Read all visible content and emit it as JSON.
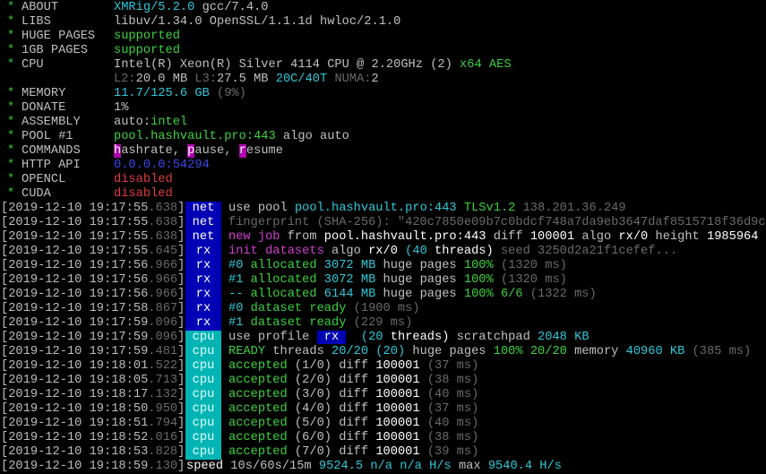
{
  "colors": {
    "green": "#3dd23d",
    "cyan": "#2ec8d8",
    "blue": "#3b48e8",
    "red": "#e03c3c",
    "dim": "#6a6a6a",
    "magenta": "#d040d0",
    "tag_net_rx_bg": "#0000b4",
    "tag_cpu_bg": "#00b4b4",
    "command_key_bg": "#b000b0"
  },
  "header": [
    {
      "star": "*",
      "label": "ABOUT",
      "segments": [
        [
          "XMRig/5.2.0",
          "c"
        ],
        [
          " gcc/7.4.0",
          "t"
        ]
      ]
    },
    {
      "star": "*",
      "label": "LIBS",
      "segments": [
        [
          "libuv/1.34.0 OpenSSL/1.1.1d hwloc/2.1.0",
          "t"
        ]
      ]
    },
    {
      "star": "*",
      "label": "HUGE PAGES",
      "segments": [
        [
          "supported",
          "g"
        ]
      ]
    },
    {
      "star": "*",
      "label": "1GB PAGES",
      "segments": [
        [
          "supported",
          "g"
        ]
      ]
    },
    {
      "star": "*",
      "label": "CPU",
      "segments": [
        [
          "Intel(R) Xeon(R) Silver 4114 CPU @ 2.20GHz",
          "t"
        ],
        [
          " (2)",
          "t"
        ],
        [
          " x64 AES",
          "g"
        ]
      ]
    },
    {
      "star": "",
      "label": "",
      "segments": [
        [
          "L2:",
          "d"
        ],
        [
          "20.0 MB",
          "t"
        ],
        [
          " L3:",
          "d"
        ],
        [
          "27.5 MB",
          "t"
        ],
        [
          " 20C/40T",
          "c"
        ],
        [
          " NUMA:",
          "d"
        ],
        [
          "2",
          "t"
        ]
      ]
    },
    {
      "star": "*",
      "label": "MEMORY",
      "segments": [
        [
          "11.7/125.6 GB",
          "c"
        ],
        [
          " (9%)",
          "d"
        ]
      ]
    },
    {
      "star": "*",
      "label": "DONATE",
      "segments": [
        [
          "1%",
          "t"
        ]
      ]
    },
    {
      "star": "*",
      "label": "ASSEMBLY",
      "segments": [
        [
          "auto:",
          "t"
        ],
        [
          "intel",
          "g"
        ]
      ]
    },
    {
      "star": "*",
      "label": "POOL #1",
      "segments": [
        [
          "pool.hashvault.pro:443",
          "g"
        ],
        [
          " algo auto",
          "t"
        ]
      ]
    },
    {
      "star": "*",
      "label": "COMMANDS",
      "segments": [
        [
          "h",
          "mb"
        ],
        [
          "ashrate, ",
          "t"
        ],
        [
          "p",
          "mb"
        ],
        [
          "ause, ",
          "t"
        ],
        [
          "r",
          "mb"
        ],
        [
          "esume",
          "t"
        ]
      ]
    },
    {
      "star": "*",
      "label": "HTTP API",
      "segments": [
        [
          "0.0.0.0:54294",
          "b"
        ]
      ]
    },
    {
      "star": "*",
      "label": "OPENCL",
      "segments": [
        [
          "disabled",
          "r"
        ]
      ]
    },
    {
      "star": "*",
      "label": "CUDA",
      "segments": [
        [
          "disabled",
          "r"
        ]
      ]
    }
  ],
  "log": [
    {
      "ts": "[2019-12-10 19:17:55",
      "ms": ".638",
      "close": "]",
      "tag": "net",
      "segments": [
        [
          "use pool ",
          "t"
        ],
        [
          "pool.hashvault.pro:443",
          "c"
        ],
        [
          " TLSv1.2",
          "g"
        ],
        [
          " 138.201.36.249",
          "d"
        ]
      ]
    },
    {
      "ts": "[2019-12-10 19:17:55",
      "ms": ".638",
      "close": "]",
      "tag": "net",
      "segments": [
        [
          "fingerprint (SHA-256): \"420c7850e09b7c0bdcf748a7da9eb3647daf8515718f36d9c",
          "d"
        ]
      ]
    },
    {
      "ts": "[2019-12-10 19:17:55",
      "ms": ".638",
      "close": "]",
      "tag": "net",
      "segments": [
        [
          "new job",
          "m"
        ],
        [
          " from ",
          "t"
        ],
        [
          "pool.hashvault.pro:443",
          "w"
        ],
        [
          " diff ",
          "t"
        ],
        [
          "100001",
          "w"
        ],
        [
          " algo ",
          "t"
        ],
        [
          "rx/0",
          "w"
        ],
        [
          " height ",
          "t"
        ],
        [
          "1985964",
          "w"
        ]
      ]
    },
    {
      "ts": "[2019-12-10 19:17:55",
      "ms": ".645",
      "close": "]",
      "tag": "rx",
      "segments": [
        [
          "init datasets",
          "m"
        ],
        [
          " algo ",
          "t"
        ],
        [
          "rx/0",
          "w"
        ],
        [
          " (40",
          "c"
        ],
        [
          " threads)",
          "w"
        ],
        [
          " seed 3250d2a21f1cefef...",
          "d"
        ]
      ]
    },
    {
      "ts": "[2019-12-10 19:17:56",
      "ms": ".966",
      "close": "]",
      "tag": "rx",
      "segments": [
        [
          "#0",
          "c"
        ],
        [
          " allocated",
          "g"
        ],
        [
          " 3072 MB",
          "c"
        ],
        [
          " huge pages ",
          "t"
        ],
        [
          "100%",
          "g"
        ],
        [
          " (1320 ms)",
          "d"
        ]
      ]
    },
    {
      "ts": "[2019-12-10 19:17:56",
      "ms": ".966",
      "close": "]",
      "tag": "rx",
      "segments": [
        [
          "#1",
          "c"
        ],
        [
          " allocated",
          "g"
        ],
        [
          " 3072 MB",
          "c"
        ],
        [
          " huge pages ",
          "t"
        ],
        [
          "100%",
          "g"
        ],
        [
          " (1320 ms)",
          "d"
        ]
      ]
    },
    {
      "ts": "[2019-12-10 19:17:56",
      "ms": ".966",
      "close": "]",
      "tag": "rx",
      "segments": [
        [
          "--",
          "c"
        ],
        [
          " allocated",
          "g"
        ],
        [
          " 6144 MB",
          "c"
        ],
        [
          " huge pages ",
          "t"
        ],
        [
          "100% 6/6",
          "g"
        ],
        [
          " (1322 ms)",
          "d"
        ]
      ]
    },
    {
      "ts": "[2019-12-10 19:17:58",
      "ms": ".867",
      "close": "]",
      "tag": "rx",
      "segments": [
        [
          "#0",
          "c"
        ],
        [
          " dataset ready",
          "g"
        ],
        [
          " (1900 ms)",
          "d"
        ]
      ]
    },
    {
      "ts": "[2019-12-10 19:17:59",
      "ms": ".096",
      "close": "]",
      "tag": "rx",
      "segments": [
        [
          "#1",
          "c"
        ],
        [
          " dataset ready",
          "g"
        ],
        [
          " (229 ms)",
          "d"
        ]
      ]
    },
    {
      "ts": "[2019-12-10 19:17:59",
      "ms": ".096",
      "close": "]",
      "tag": "cpu",
      "segments": [
        [
          "use profile ",
          "t"
        ],
        [
          " rx ",
          "bb"
        ],
        [
          "  (20",
          "c"
        ],
        [
          " threads)",
          "w"
        ],
        [
          " scratchpad ",
          "t"
        ],
        [
          "2048 KB",
          "c"
        ]
      ]
    },
    {
      "ts": "[2019-12-10 19:17:59",
      "ms": ".481",
      "close": "]",
      "tag": "cpu",
      "segments": [
        [
          "READY",
          "g"
        ],
        [
          " threads ",
          "t"
        ],
        [
          "20/20",
          "c"
        ],
        [
          " (20)",
          "c"
        ],
        [
          " huge pages ",
          "t"
        ],
        [
          "100% 20/20",
          "g"
        ],
        [
          " memory ",
          "t"
        ],
        [
          "40960 KB",
          "c"
        ],
        [
          " (385 ms)",
          "d"
        ]
      ]
    },
    {
      "ts": "[2019-12-10 19:18:01",
      "ms": ".522",
      "close": "]",
      "tag": "cpu",
      "segments": [
        [
          "accepted",
          "g"
        ],
        [
          " (1/0)",
          "t"
        ],
        [
          " diff ",
          "t"
        ],
        [
          "100001",
          "w"
        ],
        [
          " (37 ms)",
          "d"
        ]
      ]
    },
    {
      "ts": "[2019-12-10 19:18:05",
      "ms": ".713",
      "close": "]",
      "tag": "cpu",
      "segments": [
        [
          "accepted",
          "g"
        ],
        [
          " (2/0)",
          "t"
        ],
        [
          " diff ",
          "t"
        ],
        [
          "100001",
          "w"
        ],
        [
          " (38 ms)",
          "d"
        ]
      ]
    },
    {
      "ts": "[2019-12-10 19:18:17",
      "ms": ".132",
      "close": "]",
      "tag": "cpu",
      "segments": [
        [
          "accepted",
          "g"
        ],
        [
          " (3/0)",
          "t"
        ],
        [
          " diff ",
          "t"
        ],
        [
          "100001",
          "w"
        ],
        [
          " (40 ms)",
          "d"
        ]
      ]
    },
    {
      "ts": "[2019-12-10 19:18:50",
      "ms": ".950",
      "close": "]",
      "tag": "cpu",
      "segments": [
        [
          "accepted",
          "g"
        ],
        [
          " (4/0)",
          "t"
        ],
        [
          " diff ",
          "t"
        ],
        [
          "100001",
          "w"
        ],
        [
          " (37 ms)",
          "d"
        ]
      ]
    },
    {
      "ts": "[2019-12-10 19:18:51",
      "ms": ".794",
      "close": "]",
      "tag": "cpu",
      "segments": [
        [
          "accepted",
          "g"
        ],
        [
          " (5/0)",
          "t"
        ],
        [
          " diff ",
          "t"
        ],
        [
          "100001",
          "w"
        ],
        [
          " (40 ms)",
          "d"
        ]
      ]
    },
    {
      "ts": "[2019-12-10 19:18:52",
      "ms": ".016",
      "close": "]",
      "tag": "cpu",
      "segments": [
        [
          "accepted",
          "g"
        ],
        [
          " (6/0)",
          "t"
        ],
        [
          " diff ",
          "t"
        ],
        [
          "100001",
          "w"
        ],
        [
          " (38 ms)",
          "d"
        ]
      ]
    },
    {
      "ts": "[2019-12-10 19:18:53",
      "ms": ".828",
      "close": "]",
      "tag": "cpu",
      "segments": [
        [
          "accepted",
          "g"
        ],
        [
          " (7/0)",
          "t"
        ],
        [
          " diff ",
          "t"
        ],
        [
          "100001",
          "w"
        ],
        [
          " (39 ms)",
          "d"
        ]
      ]
    },
    {
      "ts": "[2019-12-10 19:18:59",
      "ms": ".130",
      "close": "]",
      "tag": "",
      "segments": [
        [
          "speed",
          "w"
        ],
        [
          " 10s/60s/15m ",
          "t"
        ],
        [
          "9524.5",
          "c"
        ],
        [
          " n/a n/a",
          "c"
        ],
        [
          " H/s",
          "c"
        ],
        [
          " max ",
          "t"
        ],
        [
          "9540.4 H/s",
          "c"
        ]
      ]
    }
  ]
}
